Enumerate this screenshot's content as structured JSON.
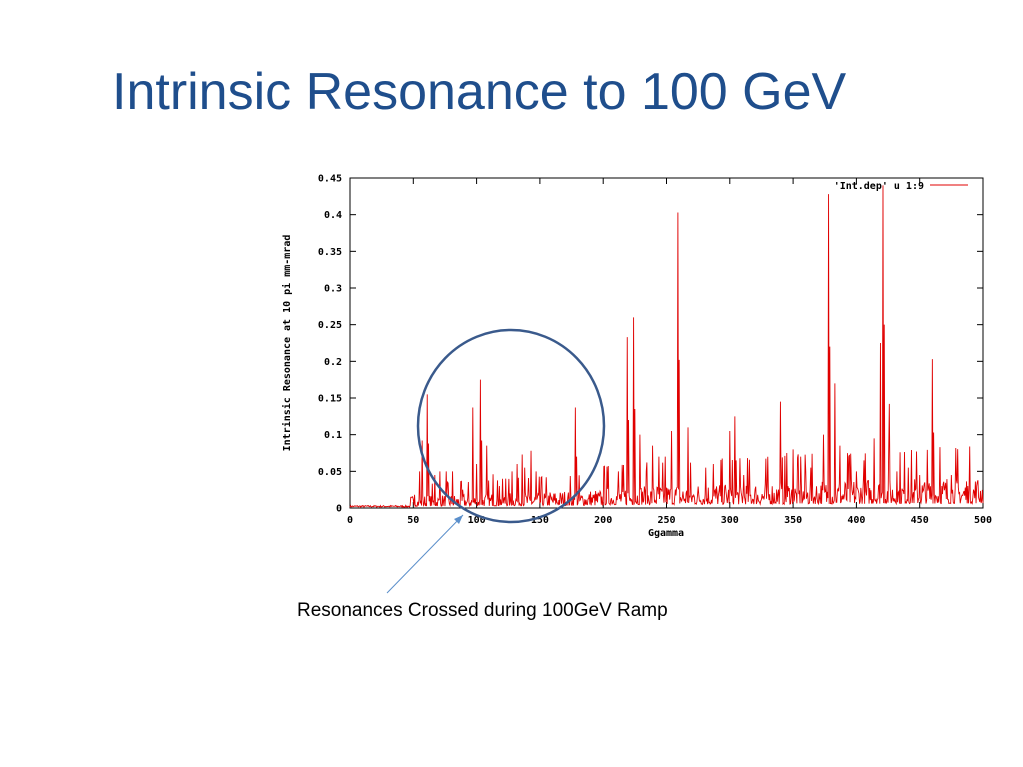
{
  "slide": {
    "title": "Intrinsic Resonance to 100 GeV",
    "caption": "Resonances Crossed during 100GeV Ramp"
  },
  "colors": {
    "title": "#1F4E8C",
    "series": "#E00000",
    "circle": "#3A5A8C",
    "arrow": "#5B8FCB"
  },
  "chart_data": {
    "type": "line",
    "xlabel": "Ggamma",
    "ylabel": "Intrinsic Resonance at 10 pi mm-mrad",
    "xlim": [
      0,
      500
    ],
    "ylim": [
      0,
      0.45
    ],
    "xticks": [
      "0",
      "50",
      "100",
      "150",
      "200",
      "250",
      "300",
      "350",
      "400",
      "450",
      "500"
    ],
    "yticks": [
      "0",
      "0.05",
      "0.1",
      "0.15",
      "0.2",
      "0.25",
      "0.3",
      "0.35",
      "0.4",
      "0.45"
    ],
    "grid": false,
    "legend_position": "top-right",
    "series": [
      {
        "name": "'Int.dep' u 1:9",
        "peaks": [
          [
            51,
            0.018
          ],
          [
            55,
            0.05
          ],
          [
            57,
            0.092
          ],
          [
            61,
            0.155
          ],
          [
            62,
            0.088
          ],
          [
            67,
            0.045
          ],
          [
            71,
            0.05
          ],
          [
            76,
            0.05
          ],
          [
            81,
            0.05
          ],
          [
            89,
            0.025
          ],
          [
            97,
            0.137
          ],
          [
            100,
            0.06
          ],
          [
            103,
            0.175
          ],
          [
            104,
            0.092
          ],
          [
            108,
            0.085
          ],
          [
            113,
            0.046
          ],
          [
            118,
            0.03
          ],
          [
            123,
            0.04
          ],
          [
            128,
            0.05
          ],
          [
            132,
            0.06
          ],
          [
            136,
            0.073
          ],
          [
            138,
            0.055
          ],
          [
            143,
            0.078
          ],
          [
            147,
            0.05
          ],
          [
            178,
            0.137
          ],
          [
            179,
            0.07
          ],
          [
            212,
            0.05
          ],
          [
            219,
            0.233
          ],
          [
            220,
            0.12
          ],
          [
            224,
            0.26
          ],
          [
            225,
            0.135
          ],
          [
            229,
            0.1
          ],
          [
            234,
            0.05
          ],
          [
            239,
            0.085
          ],
          [
            244,
            0.07
          ],
          [
            249,
            0.07
          ],
          [
            254,
            0.105
          ],
          [
            259,
            0.403
          ],
          [
            260,
            0.202
          ],
          [
            267,
            0.11
          ],
          [
            281,
            0.055
          ],
          [
            287,
            0.06
          ],
          [
            300,
            0.105
          ],
          [
            304,
            0.125
          ],
          [
            305,
            0.065
          ],
          [
            311,
            0.045
          ],
          [
            340,
            0.145
          ],
          [
            345,
            0.075
          ],
          [
            350,
            0.08
          ],
          [
            356,
            0.07
          ],
          [
            360,
            0.05
          ],
          [
            364,
            0.055
          ],
          [
            374,
            0.1
          ],
          [
            378,
            0.428
          ],
          [
            379,
            0.22
          ],
          [
            383,
            0.17
          ],
          [
            387,
            0.085
          ],
          [
            394,
            0.07
          ],
          [
            400,
            0.05
          ],
          [
            406,
            0.065
          ],
          [
            414,
            0.095
          ],
          [
            419,
            0.225
          ],
          [
            421,
            0.44
          ],
          [
            422,
            0.25
          ],
          [
            426,
            0.142
          ],
          [
            432,
            0.05
          ],
          [
            441,
            0.055
          ],
          [
            450,
            0.045
          ],
          [
            460,
            0.203
          ],
          [
            461,
            0.103
          ],
          [
            466,
            0.083
          ],
          [
            475,
            0.045
          ],
          [
            488,
            0.03
          ],
          [
            495,
            0.03
          ]
        ]
      }
    ]
  }
}
